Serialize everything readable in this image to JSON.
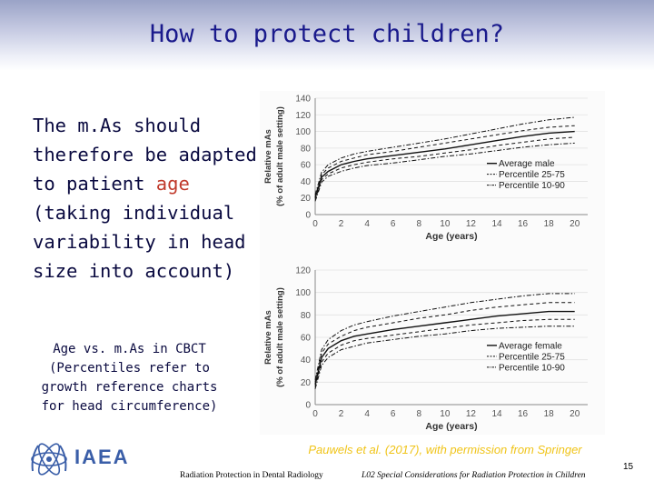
{
  "slide": {
    "title": "How to protect children?",
    "body_before": "The m.As should therefore be adapted to patient ",
    "body_highlight": "age",
    "body_after": " (taking individual variability in head size into account)",
    "caption": "Age vs. m.As in CBCT (Percentiles refer to growth reference charts for head circumference)",
    "credit": "Pauwels et al. (2017), with permission from Springer",
    "logo_text": "IAEA",
    "footer_left": "Radiation Protection in Dental Radiology",
    "footer_right": "L02 Special Considerations for Radiation Protection in Children",
    "page_number": "15",
    "highlight_color": "#c0392b",
    "title_color": "#1a1a8c"
  },
  "chart_data": [
    {
      "type": "line",
      "title": "",
      "xlabel": "Age (years)",
      "ylabel": "Relative mAs\n(% of adult male setting)",
      "xlim": [
        0,
        21
      ],
      "ylim": [
        0,
        140
      ],
      "xticks": [
        0,
        2,
        4,
        6,
        8,
        10,
        12,
        14,
        16,
        18,
        20
      ],
      "yticks": [
        0,
        20,
        40,
        60,
        80,
        100,
        120,
        140
      ],
      "legend": "right",
      "x": [
        0,
        0.5,
        1,
        2,
        3,
        4,
        6,
        8,
        10,
        12,
        14,
        16,
        18,
        20
      ],
      "series": [
        {
          "name": "Average male",
          "style": "solid",
          "values": [
            20,
            45,
            52,
            60,
            64,
            67,
            71,
            75,
            79,
            84,
            89,
            94,
            98,
            100
          ]
        },
        {
          "name": "Percentile 25-75",
          "style": "dash",
          "values": [
            22,
            48,
            56,
            64,
            68,
            72,
            76,
            81,
            86,
            91,
            96,
            101,
            105,
            107
          ]
        },
        {
          "name": "",
          "style": "dash",
          "values": [
            18,
            42,
            49,
            56,
            60,
            63,
            67,
            70,
            74,
            78,
            83,
            87,
            91,
            93
          ]
        },
        {
          "name": "Percentile 10-90",
          "style": "dashdot",
          "values": [
            24,
            51,
            60,
            68,
            73,
            76,
            81,
            86,
            91,
            97,
            103,
            109,
            114,
            117
          ]
        },
        {
          "name": "",
          "style": "dashdot",
          "values": [
            16,
            39,
            46,
            52,
            56,
            59,
            62,
            66,
            70,
            73,
            77,
            81,
            84,
            86
          ]
        }
      ]
    },
    {
      "type": "line",
      "title": "",
      "xlabel": "Age (years)",
      "ylabel": "Relative mAs\n(% of adult male setting)",
      "xlim": [
        0,
        21
      ],
      "ylim": [
        0,
        120
      ],
      "xticks": [
        0,
        2,
        4,
        6,
        8,
        10,
        12,
        14,
        16,
        18,
        20
      ],
      "yticks": [
        0,
        20,
        40,
        60,
        80,
        100,
        120
      ],
      "legend": "right",
      "x": [
        0,
        0.5,
        1,
        2,
        3,
        4,
        6,
        8,
        10,
        12,
        14,
        16,
        18,
        20
      ],
      "series": [
        {
          "name": "Average female",
          "style": "solid",
          "values": [
            18,
            42,
            50,
            57,
            61,
            63,
            67,
            70,
            73,
            76,
            79,
            81,
            83,
            83
          ]
        },
        {
          "name": "Percentile 25-75",
          "style": "dash",
          "values": [
            20,
            46,
            54,
            61,
            66,
            69,
            73,
            77,
            80,
            84,
            87,
            89,
            91,
            91
          ]
        },
        {
          "name": "",
          "style": "dash",
          "values": [
            16,
            38,
            46,
            53,
            57,
            59,
            62,
            65,
            68,
            71,
            73,
            75,
            76,
            76
          ]
        },
        {
          "name": "Percentile 10-90",
          "style": "dashdot",
          "values": [
            22,
            49,
            58,
            66,
            71,
            74,
            79,
            83,
            87,
            91,
            94,
            97,
            99,
            99
          ]
        },
        {
          "name": "",
          "style": "dashdot",
          "values": [
            14,
            35,
            42,
            49,
            52,
            55,
            58,
            61,
            63,
            66,
            68,
            69,
            70,
            70
          ]
        }
      ]
    }
  ]
}
